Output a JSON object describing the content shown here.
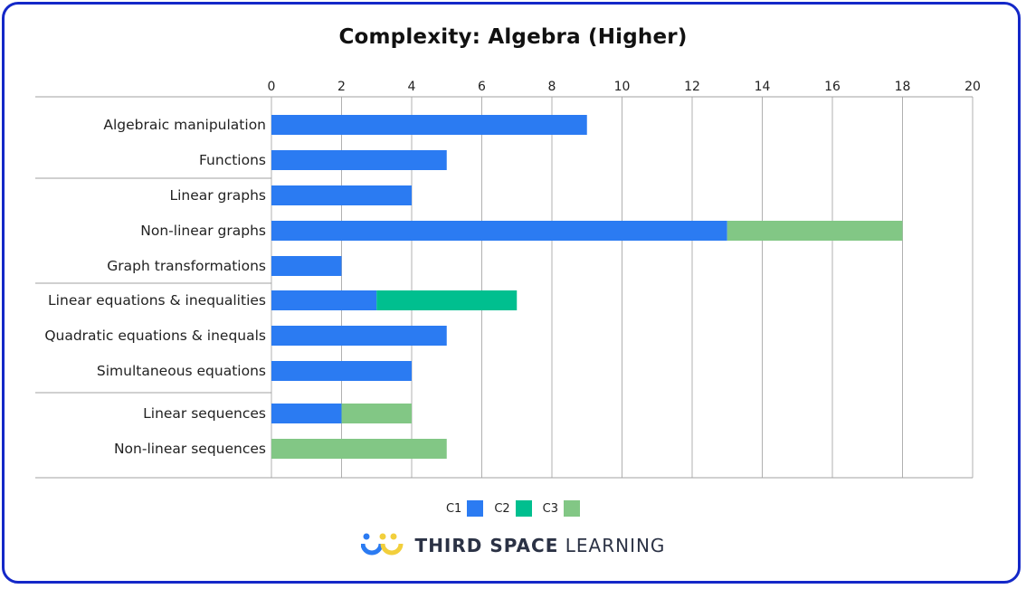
{
  "chart_data": {
    "type": "bar",
    "orientation": "horizontal",
    "stacked": true,
    "title": "Complexity: Algebra (Higher)",
    "xlim": [
      0,
      20
    ],
    "xticks": [
      0,
      2,
      4,
      6,
      8,
      10,
      12,
      14,
      16,
      18,
      20
    ],
    "grid": true,
    "legend_position": "bottom",
    "categories": [
      "Algebraic manipulation",
      "Functions",
      "Linear graphs",
      "Non-linear graphs",
      "Graph transformations",
      "Linear equations & inequalities",
      "Quadratic equations & inequals",
      "Simultaneous equations",
      "Linear sequences",
      "Non-linear sequences"
    ],
    "series": [
      {
        "name": "C1",
        "color": "#2b7bf2",
        "values": [
          9,
          5,
          4,
          13,
          2,
          3,
          5,
          4,
          2,
          0
        ]
      },
      {
        "name": "C2",
        "color": "#00bf8f",
        "values": [
          0,
          0,
          0,
          0,
          0,
          4,
          0,
          0,
          0,
          0
        ]
      },
      {
        "name": "C3",
        "color": "#82c785",
        "values": [
          0,
          0,
          0,
          5,
          0,
          0,
          0,
          0,
          2,
          5
        ]
      }
    ]
  },
  "branding": {
    "logo_bold": "THIRD SPACE",
    "logo_light": "LEARNING",
    "border_color": "#1428c8"
  }
}
